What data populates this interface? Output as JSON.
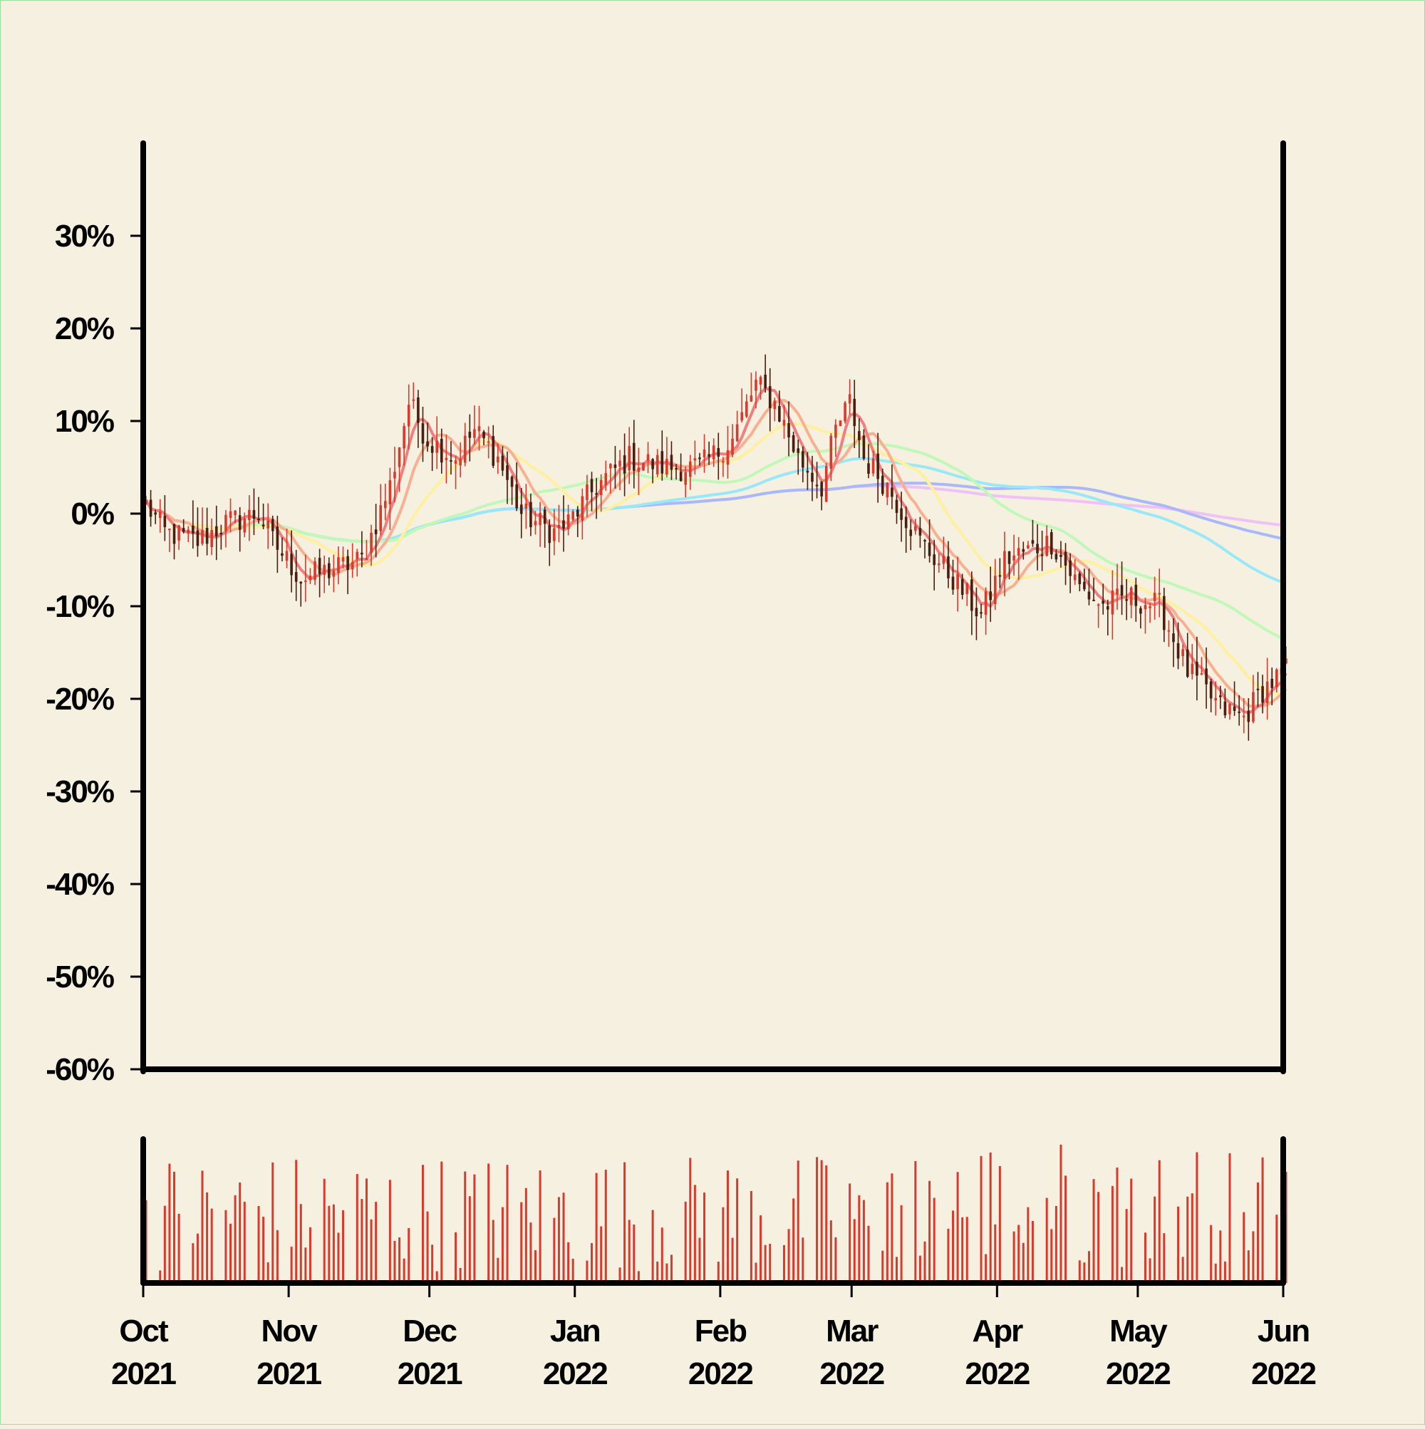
{
  "chart_data": {
    "type": "candlestick",
    "x_start": "2021-10-01",
    "x_end": "2022-06-01",
    "y_ticks": [
      {
        "value": 30,
        "label": "30%"
      },
      {
        "value": 20,
        "label": "20%"
      },
      {
        "value": 10,
        "label": "10%"
      },
      {
        "value": 0,
        "label": "0%"
      },
      {
        "value": -10,
        "label": "-10%"
      },
      {
        "value": -20,
        "label": "-20%"
      },
      {
        "value": -30,
        "label": "-30%"
      },
      {
        "value": -40,
        "label": "-40%"
      },
      {
        "value": -50,
        "label": "-50%"
      },
      {
        "value": -60,
        "label": "-60%"
      }
    ],
    "ylim": [
      -60,
      40
    ],
    "x_ticks": [
      {
        "date": "2021-10-01",
        "month": "Oct",
        "year": "2021"
      },
      {
        "date": "2021-11-01",
        "month": "Nov",
        "year": "2021"
      },
      {
        "date": "2021-12-01",
        "month": "Dec",
        "year": "2021"
      },
      {
        "date": "2022-01-01",
        "month": "Jan",
        "year": "2022"
      },
      {
        "date": "2022-02-01",
        "month": "Feb",
        "year": "2022"
      },
      {
        "date": "2022-03-01",
        "month": "Mar",
        "year": "2022"
      },
      {
        "date": "2022-04-01",
        "month": "Apr",
        "year": "2022"
      },
      {
        "date": "2022-05-01",
        "month": "May",
        "year": "2022"
      },
      {
        "date": "2022-06-01",
        "month": "Jun",
        "year": "2022"
      }
    ],
    "price_keypoints": [
      [
        "2021-10-01",
        1
      ],
      [
        "2021-10-05",
        -2
      ],
      [
        "2021-10-12",
        -3
      ],
      [
        "2021-10-18",
        -1
      ],
      [
        "2021-10-25",
        0
      ],
      [
        "2021-10-28",
        -3
      ],
      [
        "2021-11-03",
        -7
      ],
      [
        "2021-11-10",
        -6
      ],
      [
        "2021-11-16",
        -5
      ],
      [
        "2021-11-22",
        3
      ],
      [
        "2021-11-26",
        12
      ],
      [
        "2021-11-30",
        8
      ],
      [
        "2021-12-06",
        6
      ],
      [
        "2021-12-10",
        9
      ],
      [
        "2021-12-15",
        6
      ],
      [
        "2021-12-20",
        0
      ],
      [
        "2021-12-27",
        -2
      ],
      [
        "2021-12-30",
        -1
      ],
      [
        "2022-01-05",
        3
      ],
      [
        "2022-01-12",
        6
      ],
      [
        "2022-01-20",
        5
      ],
      [
        "2022-01-27",
        5
      ],
      [
        "2022-02-03",
        8
      ],
      [
        "2022-02-08",
        14
      ],
      [
        "2022-02-12",
        12
      ],
      [
        "2022-02-17",
        6
      ],
      [
        "2022-02-22",
        3
      ],
      [
        "2022-02-25",
        9
      ],
      [
        "2022-02-28",
        12
      ],
      [
        "2022-03-03",
        6
      ],
      [
        "2022-03-08",
        3
      ],
      [
        "2022-03-15",
        -3
      ],
      [
        "2022-03-22",
        -7
      ],
      [
        "2022-03-28",
        -11
      ],
      [
        "2022-04-02",
        -5
      ],
      [
        "2022-04-07",
        -4
      ],
      [
        "2022-04-12",
        -3
      ],
      [
        "2022-04-18",
        -8
      ],
      [
        "2022-04-23",
        -10
      ],
      [
        "2022-04-28",
        -9
      ],
      [
        "2022-05-05",
        -10
      ],
      [
        "2022-05-11",
        -17
      ],
      [
        "2022-05-18",
        -21
      ],
      [
        "2022-05-23",
        -22
      ],
      [
        "2022-05-27",
        -19
      ],
      [
        "2022-06-01",
        -17
      ]
    ],
    "moving_averages": [
      {
        "window": 5,
        "color": "#f08080"
      },
      {
        "window": 10,
        "color": "#f8b090"
      },
      {
        "window": 20,
        "color": "#fff0a0"
      },
      {
        "window": 50,
        "color": "#c0f8b8"
      },
      {
        "window": 100,
        "color": "#98e8f8"
      },
      {
        "window": 150,
        "color": "#a8b8f8"
      },
      {
        "window": 200,
        "color": "#f0c0f8"
      }
    ],
    "colors": {
      "up": "#d83a2e",
      "down": "#4a1e10",
      "volume": "#d83a2e",
      "background": "#f5f0df",
      "axis": "#000000"
    },
    "volume": {
      "shown": true,
      "y_labels": false
    },
    "grid": false,
    "legend": "none",
    "title": "",
    "xlabel": "",
    "ylabel": ""
  }
}
